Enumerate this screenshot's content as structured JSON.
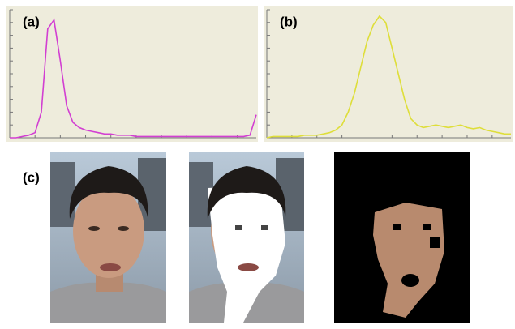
{
  "chart_data": [
    {
      "type": "line",
      "title": "(a)",
      "color": "#d23fd2",
      "background": "#eeecdc",
      "x": [
        0,
        1,
        2,
        3,
        4,
        5,
        6,
        7,
        8,
        9,
        10,
        11,
        12,
        13,
        14,
        15,
        16,
        17,
        18,
        19,
        20,
        21,
        22,
        23,
        24,
        25,
        26,
        27,
        28,
        29,
        30,
        31,
        32,
        33,
        34,
        35,
        36,
        37,
        38,
        39
      ],
      "values": [
        0,
        0,
        1,
        2,
        4,
        20,
        85,
        92,
        60,
        25,
        12,
        8,
        6,
        5,
        4,
        3,
        3,
        2,
        2,
        2,
        1,
        1,
        1,
        1,
        1,
        1,
        1,
        1,
        1,
        1,
        1,
        1,
        1,
        1,
        1,
        1,
        1,
        1,
        2,
        18
      ],
      "xlim": [
        0,
        39
      ],
      "ylim": [
        0,
        100
      ],
      "xticks": [
        0,
        4,
        8,
        12,
        16,
        20,
        24,
        28,
        32,
        36
      ],
      "yticks": [
        0,
        10,
        20,
        30,
        40,
        50,
        60,
        70,
        80,
        90,
        100
      ]
    },
    {
      "type": "line",
      "title": "(b)",
      "color": "#dede3a",
      "background": "#eeecdc",
      "x": [
        0,
        1,
        2,
        3,
        4,
        5,
        6,
        7,
        8,
        9,
        10,
        11,
        12,
        13,
        14,
        15,
        16,
        17,
        18,
        19,
        20,
        21,
        22,
        23,
        24,
        25,
        26,
        27,
        28,
        29,
        30,
        31,
        32,
        33,
        34,
        35,
        36,
        37,
        38,
        39
      ],
      "values": [
        0,
        1,
        1,
        1,
        1,
        1,
        2,
        2,
        2,
        3,
        4,
        6,
        10,
        20,
        35,
        55,
        75,
        88,
        95,
        90,
        70,
        50,
        30,
        15,
        10,
        8,
        9,
        10,
        9,
        8,
        9,
        10,
        8,
        7,
        8,
        6,
        5,
        4,
        3,
        3
      ],
      "xlim": [
        0,
        39
      ],
      "ylim": [
        0,
        100
      ],
      "xticks": [
        0,
        4,
        8,
        12,
        16,
        20,
        24,
        28,
        32,
        36
      ],
      "yticks": [
        0,
        10,
        20,
        30,
        40,
        50,
        60,
        70,
        80,
        90,
        100
      ]
    }
  ],
  "figure": {
    "label": "(c)"
  }
}
